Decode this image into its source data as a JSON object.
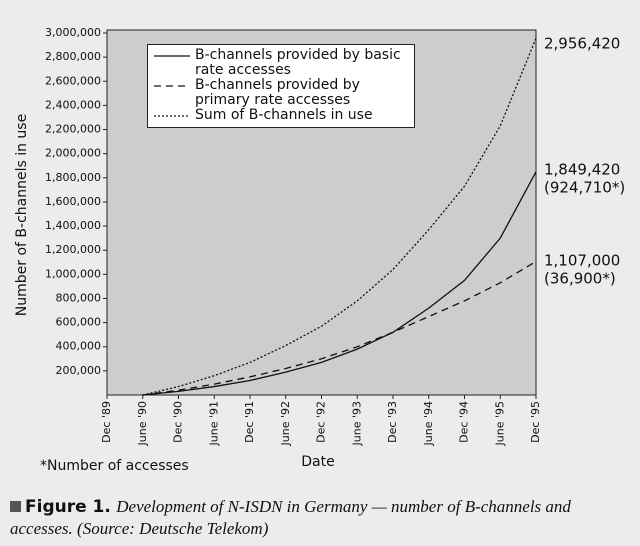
{
  "chart_data": {
    "type": "line",
    "y_axis_label": "Number of B-channels in use",
    "x_axis_label": "Date",
    "categories": [
      "Dec '89",
      "June '90",
      "Dec '90",
      "June '91",
      "Dec '91",
      "June '92",
      "Dec '92",
      "June '93",
      "Dec '93",
      "June '94",
      "Dec '94",
      "June '95",
      "Dec '95"
    ],
    "series": [
      {
        "name": "B-channels provided by basic rate accesses",
        "color": "#111111",
        "line_style": "solid",
        "values": [
          null,
          0,
          30000,
          70000,
          120000,
          190000,
          270000,
          380000,
          520000,
          720000,
          950000,
          1300000,
          1849420
        ]
      },
      {
        "name": "B-channels provided by primary rate accesses",
        "color": "#111111",
        "line_style": "dashed",
        "values": [
          null,
          0,
          40000,
          90000,
          150000,
          220000,
          300000,
          400000,
          520000,
          650000,
          780000,
          930000,
          1107000
        ]
      },
      {
        "name": "Sum of B-channels in use",
        "color": "#111111",
        "line_style": "dotted",
        "values": [
          null,
          0,
          70000,
          160000,
          270000,
          410000,
          570000,
          780000,
          1040000,
          1370000,
          1730000,
          2230000,
          2956420
        ]
      }
    ],
    "ylim": [
      0,
      3000000
    ],
    "yticks": [
      {
        "value": 200000,
        "label": "200,000"
      },
      {
        "value": 400000,
        "label": "400,000"
      },
      {
        "value": 600000,
        "label": "600,000"
      },
      {
        "value": 800000,
        "label": "800,000"
      },
      {
        "value": 1000000,
        "label": "1,000,000"
      },
      {
        "value": 1200000,
        "label": "1,200,000"
      },
      {
        "value": 1400000,
        "label": "1,400,000"
      },
      {
        "value": 1600000,
        "label": "1,600,000"
      },
      {
        "value": 1800000,
        "label": "1,800,000"
      },
      {
        "value": 2000000,
        "label": "2,000,000"
      },
      {
        "value": 2200000,
        "label": "2,200,000"
      },
      {
        "value": 2400000,
        "label": "2,400,000"
      },
      {
        "value": 2600000,
        "label": "2,600,000"
      },
      {
        "value": 2800000,
        "label": "2,800,000"
      },
      {
        "value": 3000000,
        "label": "3,000,000"
      }
    ],
    "annotations": [
      "2,956,420",
      "1,849,420",
      "(924,710*)",
      "1,107,000",
      "(36,900*)",
      "*Number of accesses"
    ],
    "caption": {
      "label": "Figure 1.",
      "text": "Development of N-ISDN in Germany — number of B-channels and accesses. (Source: Deutsche Telekom)"
    }
  }
}
